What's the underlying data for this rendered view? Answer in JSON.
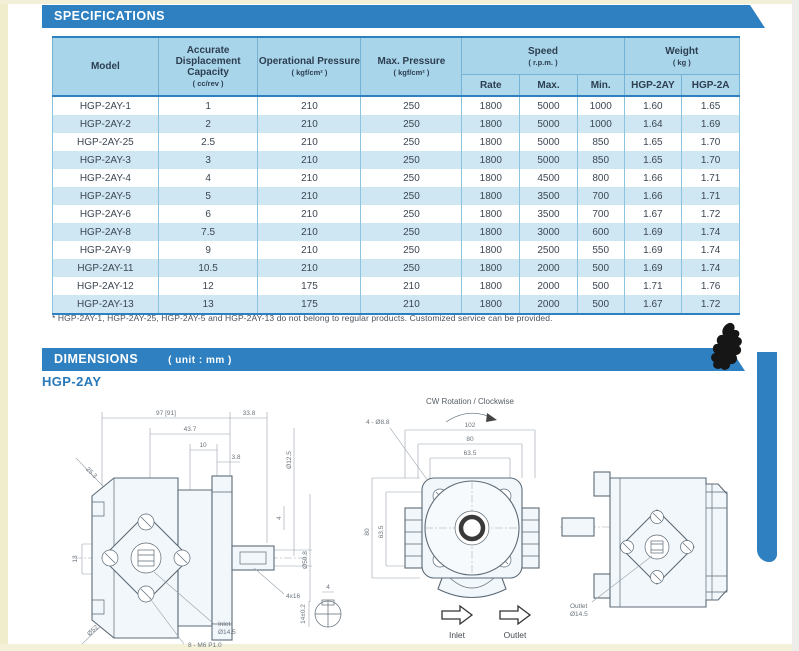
{
  "page": {
    "spec_banner": "SPECIFICATIONS",
    "dim_banner": "DIMENSIONS",
    "dim_unit": "( unit : mm )",
    "model_series": "HGP-2AY",
    "footnote": "* HGP-2AY-1, HGP-2AY-25, HGP-2AY-5 and HGP-2AY-13 do not belong to regular products. Customized service can be provided."
  },
  "colors": {
    "banner_blue": "#2e80c0",
    "header_fill": "#a9d5ea",
    "subheader_fill": "#b0d9ec",
    "row_alt": "#cfe7f3",
    "grid_blue": "#8cc3de",
    "series_blue": "#2878ba"
  },
  "table": {
    "headers": {
      "model": "Model",
      "capacity": "Accurate Displacement Capacity",
      "capacity_unit": "( cc/rev )",
      "op_pressure": "Operational Pressure",
      "op_pressure_unit": "( kgf/cm² )",
      "max_pressure": "Max. Pressure",
      "max_pressure_unit": "( kgf/cm² )",
      "speed": "Speed",
      "speed_unit": "( r.p.m. )",
      "weight": "Weight",
      "weight_unit": "( kg )",
      "rate": "Rate",
      "max": "Max.",
      "min": "Min.",
      "weight_2ay": "HGP-2AY",
      "weight_2a": "HGP-2A"
    },
    "rows": [
      [
        "HGP-2AY-1",
        "1",
        "210",
        "250",
        "1800",
        "5000",
        "1000",
        "1.60",
        "1.65"
      ],
      [
        "HGP-2AY-2",
        "2",
        "210",
        "250",
        "1800",
        "5000",
        "1000",
        "1.64",
        "1.69"
      ],
      [
        "HGP-2AY-25",
        "2.5",
        "210",
        "250",
        "1800",
        "5000",
        "850",
        "1.65",
        "1.70"
      ],
      [
        "HGP-2AY-3",
        "3",
        "210",
        "250",
        "1800",
        "5000",
        "850",
        "1.65",
        "1.70"
      ],
      [
        "HGP-2AY-4",
        "4",
        "210",
        "250",
        "1800",
        "4500",
        "800",
        "1.66",
        "1.71"
      ],
      [
        "HGP-2AY-5",
        "5",
        "210",
        "250",
        "1800",
        "3500",
        "700",
        "1.66",
        "1.71"
      ],
      [
        "HGP-2AY-6",
        "6",
        "210",
        "250",
        "1800",
        "3500",
        "700",
        "1.67",
        "1.72"
      ],
      [
        "HGP-2AY-8",
        "7.5",
        "210",
        "250",
        "1800",
        "3000",
        "600",
        "1.69",
        "1.74"
      ],
      [
        "HGP-2AY-9",
        "9",
        "210",
        "250",
        "1800",
        "2500",
        "550",
        "1.69",
        "1.74"
      ],
      [
        "HGP-2AY-11",
        "10.5",
        "210",
        "250",
        "1800",
        "2000",
        "500",
        "1.69",
        "1.74"
      ],
      [
        "HGP-2AY-12",
        "12",
        "175",
        "210",
        "1800",
        "2000",
        "500",
        "1.71",
        "1.76"
      ],
      [
        "HGP-2AY-13",
        "13",
        "175",
        "210",
        "1800",
        "2000",
        "500",
        "1.67",
        "1.72"
      ]
    ]
  },
  "drawings": {
    "left": {
      "dim_97": "97 [91]",
      "dim_33_8": "33.8",
      "dim_43_7": "43.7",
      "dim_10": "10",
      "dim_3_8": "3.8",
      "dim_25_3": "25.3",
      "dim_13": "13",
      "dim_d52": "Ø52",
      "dim_d12_5": "Ø12.5",
      "dim_d50_8": "Ø50.8",
      "dim_4": "4",
      "slot": "4x16",
      "inlet_label": "Inlet",
      "inlet_dia": "Ø14.5",
      "thread": "8 - M6 P1.0",
      "key_w": "4",
      "key_h": "14±0.2"
    },
    "middle": {
      "rotation": "CW Rotation / Clockwise",
      "dim_102": "102",
      "dim_80h": "80",
      "dim_63_5h": "63.5",
      "dim_80v": "80",
      "dim_63_5v": "63.5",
      "holes": "4 - Ø8.8",
      "inlet": "Inlet",
      "outlet": "Outlet"
    },
    "right": {
      "outlet_label": "Outlet",
      "outlet_dia": "Ø14.5"
    }
  }
}
